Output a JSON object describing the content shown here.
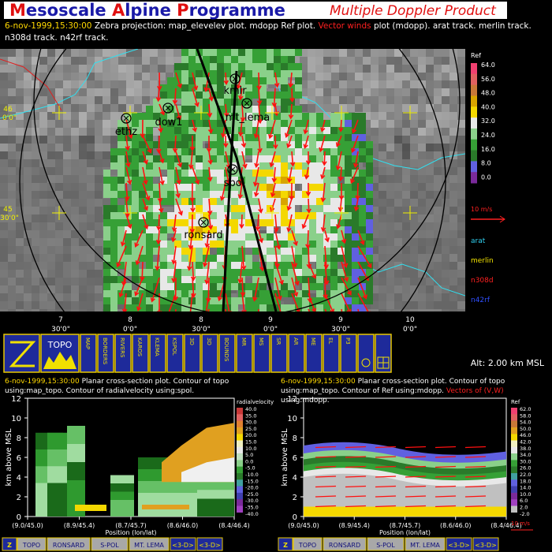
{
  "header": {
    "title": "Mesoscale Alpine Programme",
    "subtitle": "Multiple Doppler Product"
  },
  "info": {
    "time": "6-nov-1999,15:30:00",
    "text1": "Zebra projection: map_elevelev plot. mdopp Ref plot.",
    "highlight": "Vector winds",
    "text2": "plot (mdopp). arat track.   merlin track.  n308d track.  n42rf track."
  },
  "map": {
    "stations": [
      {
        "label": "kmlr"
      },
      {
        "label": "mt_lema"
      },
      {
        "label": "dow1"
      },
      {
        "label": "ethz"
      },
      {
        "label": "spol"
      },
      {
        "label": "ronsard"
      }
    ],
    "lat_labels": [
      {
        "deg": "46",
        "min": "0'0\""
      },
      {
        "deg": "45",
        "min": "30'0\""
      }
    ],
    "lon_labels": [
      {
        "deg": "7",
        "min": "30'0\""
      },
      {
        "deg": "8",
        "min": "0'0\""
      },
      {
        "deg": "8",
        "min": "30'0\""
      },
      {
        "deg": "9",
        "min": "0'0\""
      },
      {
        "deg": "9",
        "min": "30'0\""
      },
      {
        "deg": "10",
        "min": "0'0\""
      }
    ]
  },
  "legend": {
    "title": "Ref",
    "ticks": [
      "64.0",
      "56.0",
      "48.0",
      "40.0",
      "32.0",
      "24.0",
      "16.0",
      "8.0",
      "0.0"
    ],
    "scale": "10 m/s",
    "tracks": [
      "arat",
      "merlin",
      "n308d",
      "n42rf"
    ]
  },
  "toolbar": {
    "buttons": [
      "TOPO",
      "MAP",
      "BORDERS",
      "RIVERS",
      "KAROS",
      "KLEMA",
      "KSPOL",
      "3D",
      "3D",
      "BOUNDS",
      "MR",
      "MS",
      "SR",
      "AR",
      "ME",
      "EL",
      "P3"
    ],
    "altitude": "Alt: 2.00 km MSL"
  },
  "panels": [
    {
      "time": "6-nov-1999,15:30:00",
      "description": "Planar cross-section plot.  Contour of topo using:map_topo.  Contour of radialvelocity using:spol.",
      "y_label": "km above MSL",
      "y_ticks": [
        "0",
        "2",
        "4",
        "6",
        "8",
        "10",
        "12"
      ],
      "x_ticks": [
        "(9.0/45.0)",
        "(8.9/45.4)",
        "(8.7/45.7)",
        "(8.6/46.0)",
        "(8.4/46.4)"
      ],
      "x_label": "Position (lon/lat)",
      "colorbar_title": "radialvelocity",
      "colorbar_ticks": [
        "40.0",
        "35.0",
        "30.0",
        "25.0",
        "20.0",
        "15.0",
        "10.0",
        "5.0",
        "0.0",
        "-5.0",
        "-10.0",
        "-15.0",
        "-20.0",
        "-25.0",
        "-30.0",
        "-35.0",
        "-40.0"
      ],
      "buttons": [
        "Z",
        "TOPO",
        "RONSARD",
        "S-POL",
        "MT. LEMA",
        "<3-D>",
        "<3-D>"
      ]
    },
    {
      "time": "6-nov-1999,15:30:00",
      "description": "Planar cross-section plot.  Contour of topo using:map_topo.  Contour of Ref using:mdopp.",
      "highlight": "Vectors of (V,W)",
      "description2": "using:mdopp.",
      "y_label": "km above MSL",
      "y_ticks": [
        "0",
        "2",
        "4",
        "6",
        "8",
        "10",
        "12"
      ],
      "x_ticks": [
        "(9.0/45.0)",
        "(8.9/45.4)",
        "(8.7/45.7)",
        "(8.6/46.0)",
        "(8.4/46.4)"
      ],
      "x_label": "Position (lon/lat)",
      "colorbar_title": "Ref",
      "colorbar_ticks": [
        "62.0",
        "58.0",
        "54.0",
        "50.0",
        "46.0",
        "42.0",
        "38.0",
        "34.0",
        "30.0",
        "26.0",
        "22.0",
        "18.0",
        "14.0",
        "10.0",
        "6.0",
        "2.0",
        "-2.0"
      ],
      "scale": "10 m/s",
      "buttons": [
        "Z",
        "TOPO",
        "RONSARD",
        "S-POL",
        "MT. LEMA",
        "<3-D>",
        "<3-D>"
      ]
    }
  ]
}
